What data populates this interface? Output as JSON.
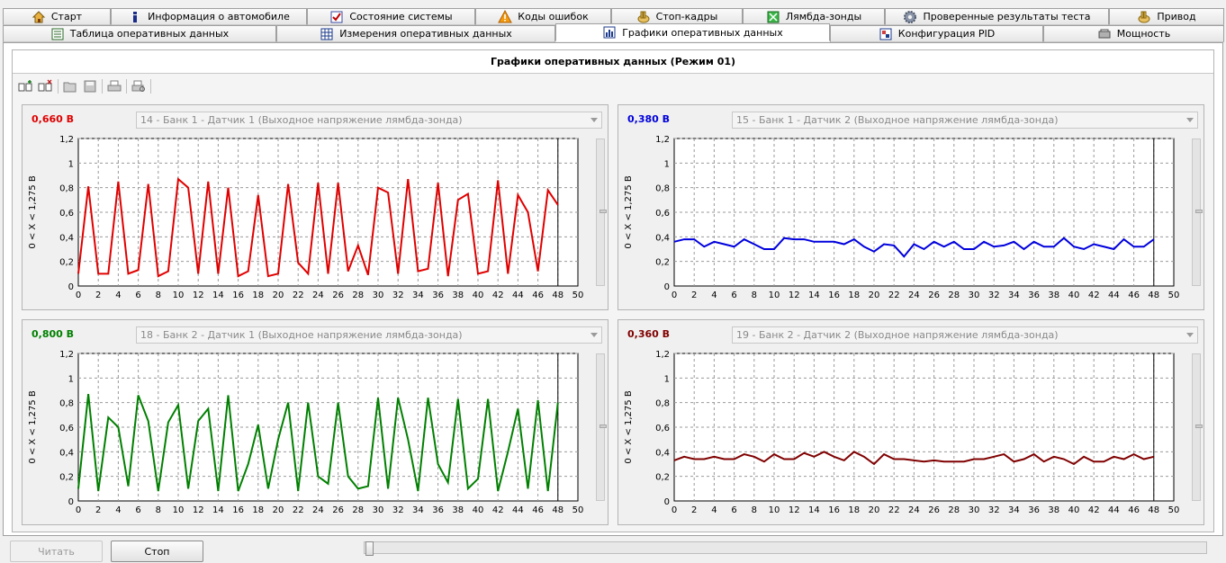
{
  "tabs_row1": [
    {
      "label": "Старт",
      "icon": "home-icon"
    },
    {
      "label": "Информация о автомобиле",
      "icon": "info-icon"
    },
    {
      "label": "Состояние системы",
      "icon": "checkbox-icon"
    },
    {
      "label": "Коды ошибок",
      "icon": "warning-icon"
    },
    {
      "label": "Стоп-кадры",
      "icon": "hand-icon"
    },
    {
      "label": "Лямбда-зонды",
      "icon": "sensor-icon"
    },
    {
      "label": "Проверенные результаты теста",
      "icon": "gear-icon"
    },
    {
      "label": "Привод",
      "icon": "hand-icon"
    }
  ],
  "tabs_row2": [
    {
      "label": "Таблица оперативных данных",
      "icon": "table-icon"
    },
    {
      "label": "Измерения оперативных данных",
      "icon": "grid-icon"
    },
    {
      "label": "Графики оперативных данных",
      "icon": "chart-icon",
      "active": true
    },
    {
      "label": "Конфигурация PID",
      "icon": "config-icon"
    },
    {
      "label": "Мощность",
      "icon": "engine-icon"
    }
  ],
  "panel": {
    "title": "Графики оперативных данных (Режим 01)"
  },
  "toolbar": [
    "add-chart-icon",
    "remove-chart-icon",
    "open-icon",
    "save-icon",
    "print-icon",
    "print-preview-icon"
  ],
  "charts": [
    {
      "value": "0,660 В",
      "color": "#e00000",
      "selected": "14 - Банк 1 - Датчик 1 (Выходное напряжение лямбда-зонда)"
    },
    {
      "value": "0,380 В",
      "color": "#0000dd",
      "selected": "15 - Банк 1 - Датчик 2 (Выходное напряжение лямбда-зонда)"
    },
    {
      "value": "0,800 В",
      "color": "#008000",
      "selected": "18 - Банк 2 - Датчик 1 (Выходное напряжение лямбда-зонда)"
    },
    {
      "value": "0,360 В",
      "color": "#800000",
      "selected": "19 - Банк 2 - Датчик 2 (Выходное напряжение лямбда-зонда)"
    }
  ],
  "chart_data": [
    {
      "type": "line",
      "ylabel": "0  < X <  1,275  В",
      "xlim": [
        0,
        50
      ],
      "ylim": [
        0,
        1.2
      ],
      "yticks": [
        "0",
        "0,2",
        "0,4",
        "0,6",
        "0,8",
        "1",
        "1,2"
      ],
      "xticks": [
        "0",
        "2",
        "4",
        "6",
        "8",
        "10",
        "12",
        "14",
        "16",
        "18",
        "20",
        "22",
        "24",
        "26",
        "28",
        "30",
        "32",
        "34",
        "36",
        "38",
        "40",
        "42",
        "44",
        "46",
        "48",
        "50"
      ],
      "grid": true,
      "series": [
        {
          "color": "#e00000",
          "values": [
            0.1,
            0.81,
            0.1,
            0.1,
            0.85,
            0.1,
            0.13,
            0.83,
            0.08,
            0.12,
            0.87,
            0.8,
            0.1,
            0.85,
            0.1,
            0.8,
            0.08,
            0.12,
            0.74,
            0.08,
            0.1,
            0.83,
            0.19,
            0.1,
            0.84,
            0.1,
            0.84,
            0.12,
            0.33,
            0.09,
            0.8,
            0.76,
            0.1,
            0.87,
            0.12,
            0.14,
            0.84,
            0.08,
            0.7,
            0.75,
            0.1,
            0.12,
            0.86,
            0.1,
            0.74,
            0.6,
            0.12,
            0.78,
            0.66
          ]
        }
      ]
    },
    {
      "type": "line",
      "ylabel": "0  < X <  1,275  В",
      "xlim": [
        0,
        50
      ],
      "ylim": [
        0,
        1.2
      ],
      "yticks": [
        "0",
        "0,2",
        "0,4",
        "0,6",
        "0,8",
        "1",
        "1,2"
      ],
      "xticks": [
        "0",
        "2",
        "4",
        "6",
        "8",
        "10",
        "12",
        "14",
        "16",
        "18",
        "20",
        "22",
        "24",
        "26",
        "28",
        "30",
        "32",
        "34",
        "36",
        "38",
        "40",
        "42",
        "44",
        "46",
        "48",
        "50"
      ],
      "grid": true,
      "series": [
        {
          "color": "#0000dd",
          "values": [
            0.36,
            0.38,
            0.38,
            0.32,
            0.36,
            0.34,
            0.32,
            0.38,
            0.34,
            0.3,
            0.3,
            0.39,
            0.38,
            0.38,
            0.36,
            0.36,
            0.36,
            0.34,
            0.38,
            0.32,
            0.28,
            0.34,
            0.33,
            0.24,
            0.34,
            0.3,
            0.36,
            0.32,
            0.36,
            0.3,
            0.3,
            0.36,
            0.32,
            0.33,
            0.36,
            0.3,
            0.36,
            0.32,
            0.32,
            0.39,
            0.32,
            0.3,
            0.34,
            0.32,
            0.3,
            0.38,
            0.32,
            0.32,
            0.38
          ]
        }
      ]
    },
    {
      "type": "line",
      "ylabel": "0  < X <  1,275  В",
      "xlim": [
        0,
        50
      ],
      "ylim": [
        0,
        1.2
      ],
      "yticks": [
        "0",
        "0,2",
        "0,4",
        "0,6",
        "0,8",
        "1",
        "1,2"
      ],
      "xticks": [
        "0",
        "2",
        "4",
        "6",
        "8",
        "10",
        "12",
        "14",
        "16",
        "18",
        "20",
        "22",
        "24",
        "26",
        "28",
        "30",
        "32",
        "34",
        "36",
        "38",
        "40",
        "42",
        "44",
        "46",
        "48",
        "50"
      ],
      "grid": true,
      "series": [
        {
          "color": "#008000",
          "values": [
            0.1,
            0.87,
            0.08,
            0.68,
            0.6,
            0.12,
            0.86,
            0.65,
            0.08,
            0.64,
            0.78,
            0.1,
            0.65,
            0.75,
            0.08,
            0.86,
            0.08,
            0.3,
            0.62,
            0.1,
            0.5,
            0.8,
            0.08,
            0.8,
            0.2,
            0.14,
            0.8,
            0.2,
            0.1,
            0.12,
            0.84,
            0.1,
            0.84,
            0.5,
            0.08,
            0.84,
            0.3,
            0.15,
            0.83,
            0.1,
            0.18,
            0.83,
            0.08,
            0.4,
            0.75,
            0.1,
            0.82,
            0.08,
            0.8
          ]
        }
      ]
    },
    {
      "type": "line",
      "ylabel": "0  < X <  1,275  В",
      "xlim": [
        0,
        50
      ],
      "ylim": [
        0,
        1.2
      ],
      "yticks": [
        "0",
        "0,2",
        "0,4",
        "0,6",
        "0,8",
        "1",
        "1,2"
      ],
      "xticks": [
        "0",
        "2",
        "4",
        "6",
        "8",
        "10",
        "12",
        "14",
        "16",
        "18",
        "20",
        "22",
        "24",
        "26",
        "28",
        "30",
        "32",
        "34",
        "36",
        "38",
        "40",
        "42",
        "44",
        "46",
        "48",
        "50"
      ],
      "grid": true,
      "series": [
        {
          "color": "#800000",
          "values": [
            0.33,
            0.36,
            0.34,
            0.34,
            0.36,
            0.34,
            0.34,
            0.38,
            0.36,
            0.32,
            0.38,
            0.34,
            0.34,
            0.39,
            0.36,
            0.4,
            0.36,
            0.33,
            0.4,
            0.36,
            0.3,
            0.38,
            0.34,
            0.34,
            0.33,
            0.32,
            0.33,
            0.32,
            0.32,
            0.32,
            0.34,
            0.34,
            0.36,
            0.38,
            0.32,
            0.34,
            0.38,
            0.32,
            0.36,
            0.34,
            0.3,
            0.36,
            0.32,
            0.32,
            0.36,
            0.34,
            0.38,
            0.34,
            0.36
          ]
        }
      ]
    }
  ],
  "buttons": {
    "read": "Читать",
    "stop": "Стоп"
  }
}
